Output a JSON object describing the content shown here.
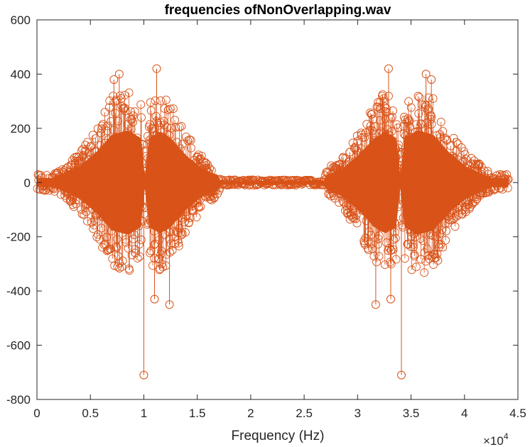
{
  "chart_data": {
    "type": "scatter",
    "style": "stem plot with open circle markers",
    "title": "frequencies ofNonOverlapping.wav",
    "xlabel": "Frequency (Hz)",
    "ylabel": "",
    "x_exponent_label": "×10",
    "x_exponent_power": "4",
    "xlim": [
      0,
      4.5
    ],
    "ylim": [
      -800,
      600
    ],
    "x_scale_factor": 10000,
    "xticks": [
      0,
      0.5,
      1,
      1.5,
      2,
      2.5,
      3,
      3.5,
      4,
      4.5
    ],
    "xtick_labels": [
      "0",
      "0.5",
      "1",
      "1.5",
      "2",
      "2.5",
      "3",
      "3.5",
      "4",
      "4.5"
    ],
    "yticks": [
      -800,
      -600,
      -400,
      -200,
      0,
      200,
      400,
      600
    ],
    "ytick_labels": [
      "-800",
      "-600",
      "-400",
      "-200",
      "0",
      "200",
      "400",
      "600"
    ],
    "grid": false,
    "color": "#D95319",
    "series": [
      {
        "notable_points": [
          {
            "x": 10000,
            "y": -710
          },
          {
            "x": 11200,
            "y": 420
          },
          {
            "x": 7700,
            "y": 400
          },
          {
            "x": 7200,
            "y": 380
          },
          {
            "x": 11000,
            "y": -430
          },
          {
            "x": 12400,
            "y": -450
          },
          {
            "x": 34100,
            "y": -710
          },
          {
            "x": 32900,
            "y": 420
          },
          {
            "x": 36400,
            "y": 400
          },
          {
            "x": 36900,
            "y": 380
          },
          {
            "x": 33100,
            "y": -430
          },
          {
            "x": 31700,
            "y": -450
          }
        ],
        "envelope": [
          {
            "x": 0,
            "amp": 30
          },
          {
            "x": 1500,
            "amp": 30
          },
          {
            "x": 2500,
            "amp": 60
          },
          {
            "x": 4000,
            "amp": 110
          },
          {
            "x": 5500,
            "amp": 200
          },
          {
            "x": 7000,
            "amp": 320
          },
          {
            "x": 8500,
            "amp": 350
          },
          {
            "x": 9700,
            "amp": 300
          },
          {
            "x": 10100,
            "amp": 40
          },
          {
            "x": 10500,
            "amp": 300
          },
          {
            "x": 11500,
            "amp": 340
          },
          {
            "x": 12500,
            "amp": 300
          },
          {
            "x": 14000,
            "amp": 180
          },
          {
            "x": 15500,
            "amp": 90
          },
          {
            "x": 16900,
            "amp": 50
          },
          {
            "x": 17200,
            "amp": 10
          },
          {
            "x": 26800,
            "amp": 10
          },
          {
            "x": 27100,
            "amp": 50
          },
          {
            "x": 28500,
            "amp": 90
          },
          {
            "x": 30000,
            "amp": 180
          },
          {
            "x": 31600,
            "amp": 300
          },
          {
            "x": 32600,
            "amp": 340
          },
          {
            "x": 33600,
            "amp": 300
          },
          {
            "x": 34000,
            "amp": 40
          },
          {
            "x": 34400,
            "amp": 300
          },
          {
            "x": 35600,
            "amp": 350
          },
          {
            "x": 37100,
            "amp": 320
          },
          {
            "x": 38600,
            "amp": 200
          },
          {
            "x": 40100,
            "amp": 110
          },
          {
            "x": 41600,
            "amp": 60
          },
          {
            "x": 42600,
            "amp": 30
          },
          {
            "x": 44100,
            "amp": 30
          }
        ]
      }
    ]
  }
}
